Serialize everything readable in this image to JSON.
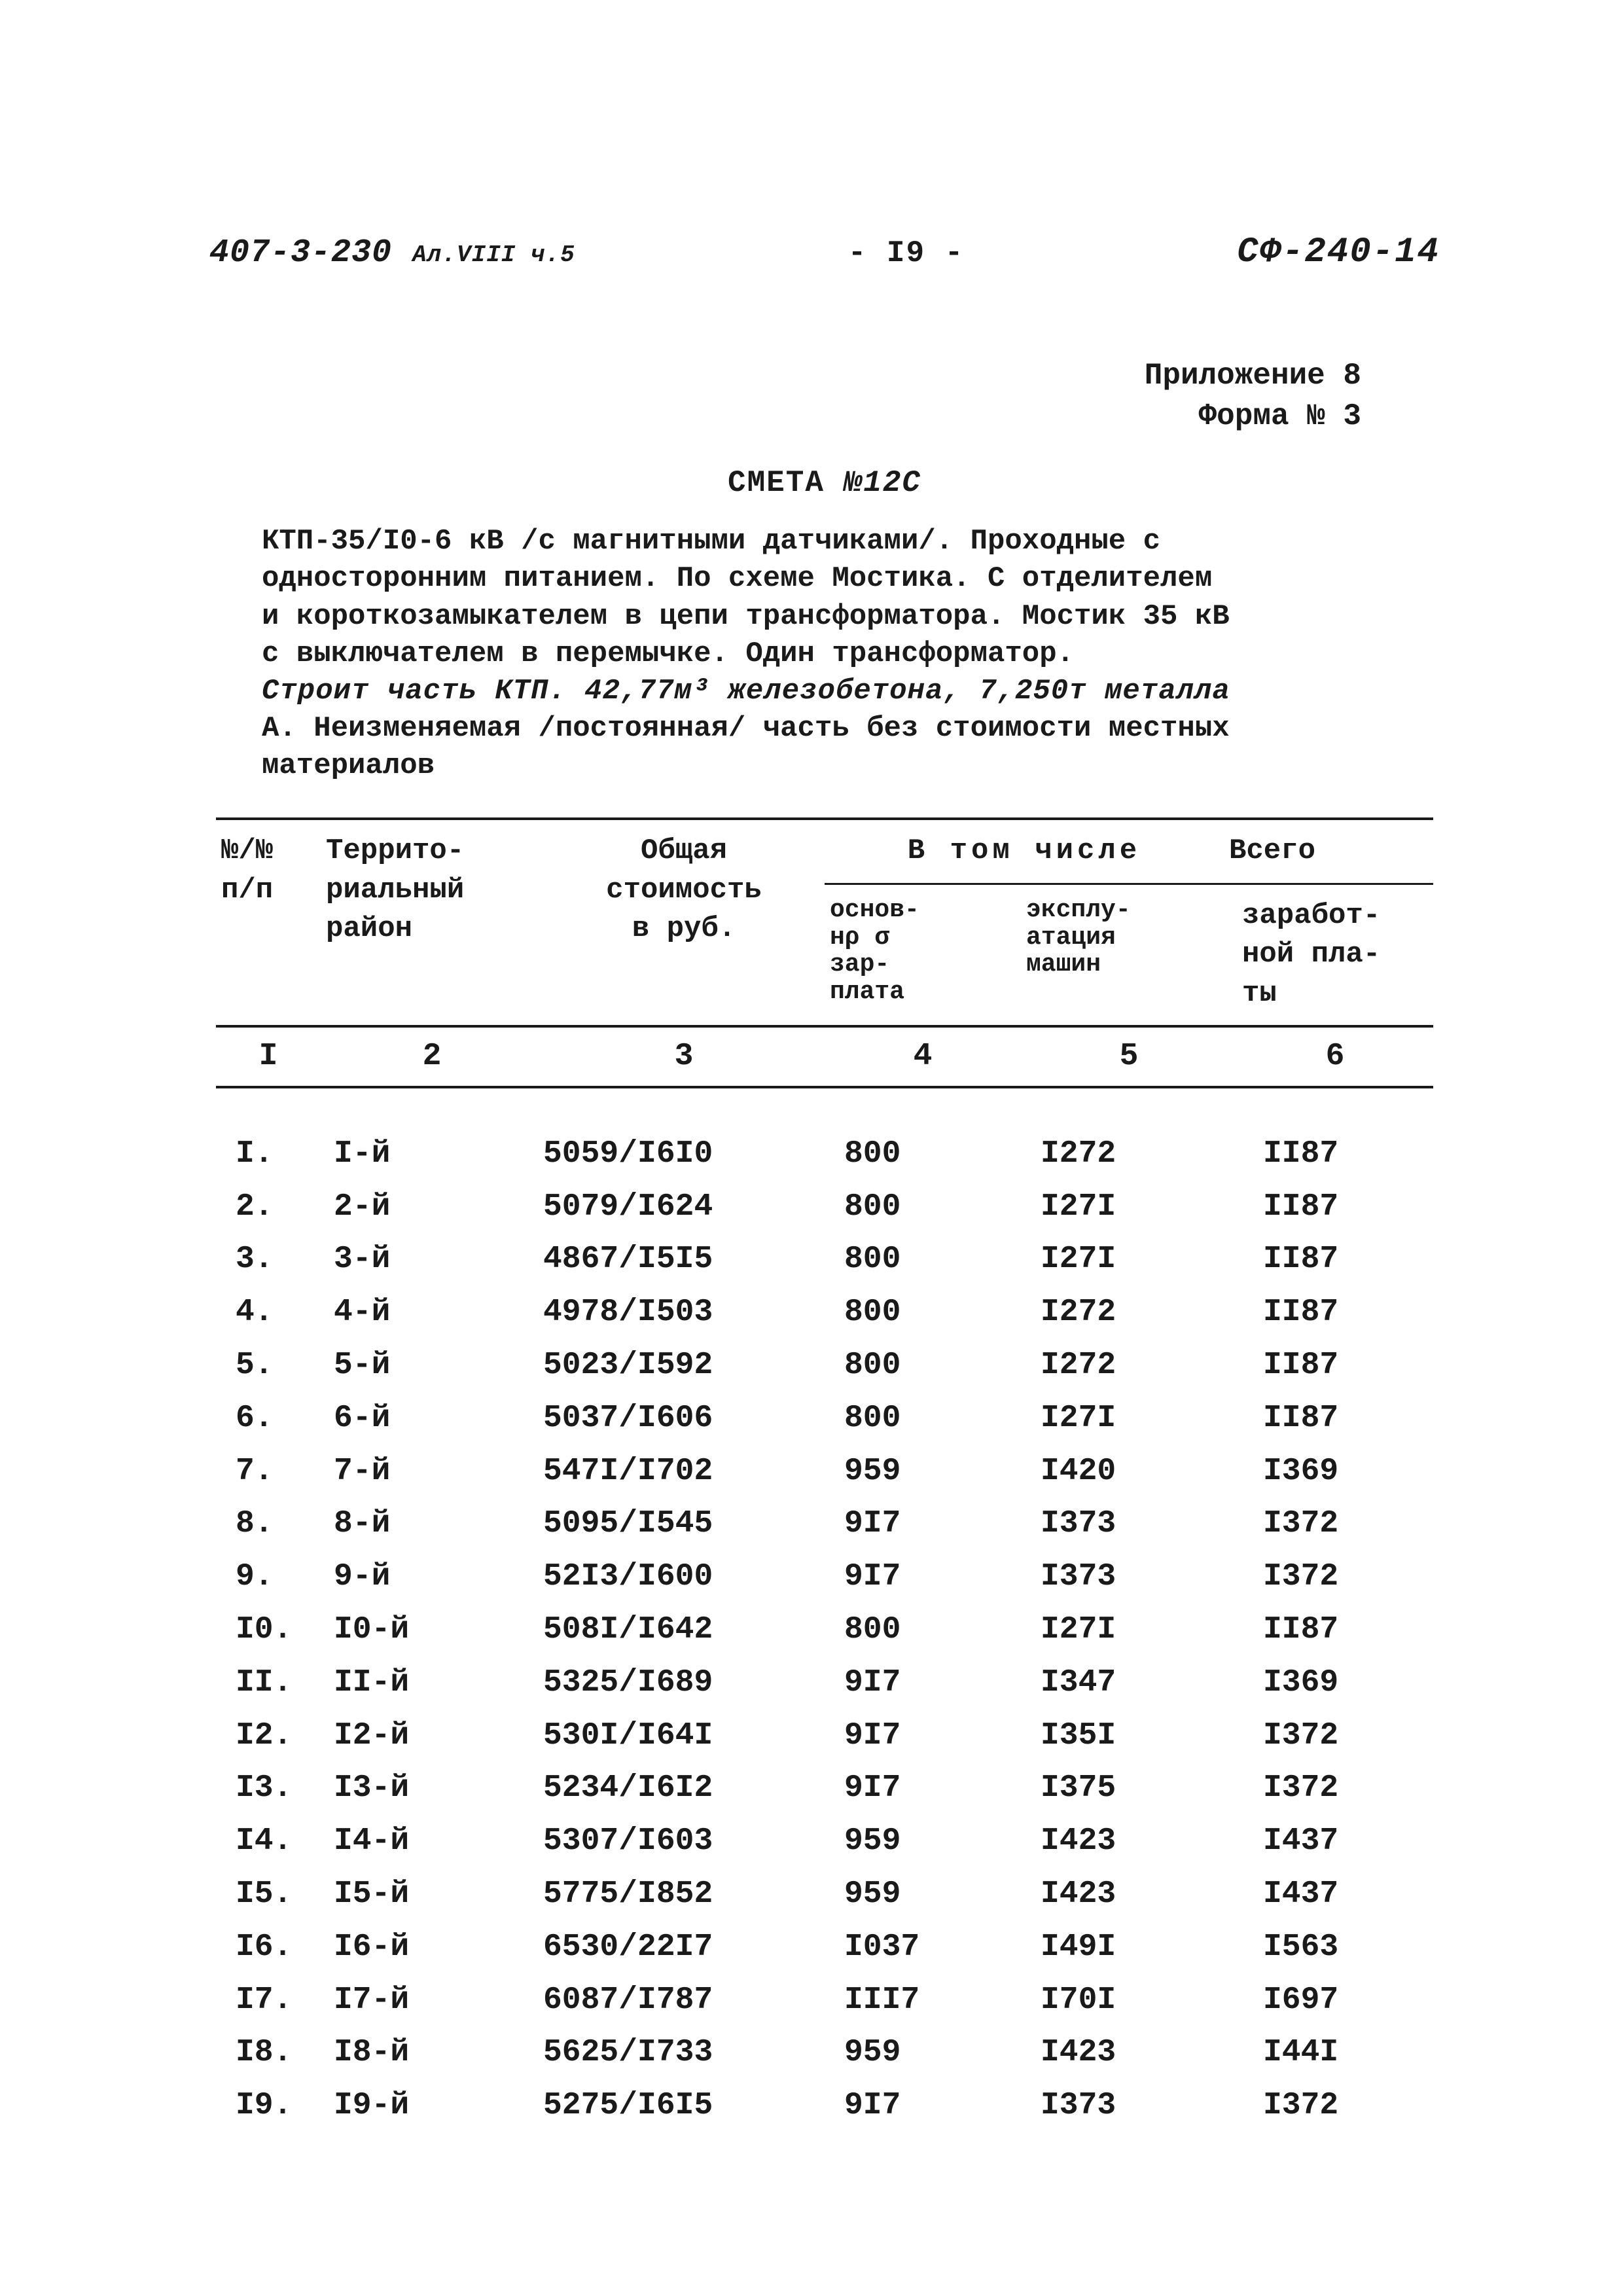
{
  "header": {
    "left_main": "407-3-230",
    "left_sub": "Ал.VIII ч.5",
    "center": "- I9 -",
    "right": "СФ-240-14"
  },
  "appendix": {
    "line1": "Приложение 8",
    "line2": "Форма № 3"
  },
  "title": {
    "prefix": "СМЕТА",
    "number": "№12С"
  },
  "description": {
    "line1": "КТП-35/I0-6 кВ /с магнитными датчиками/. Проходные с",
    "line2": "односторонним питанием. По схеме Мостика. С отделителем",
    "line3": "и короткозамыкателем в цепи трансформатора. Мостик 35 кВ",
    "line4": "с выключателем в перемычке. Один трансформатор.",
    "line5": "Строит часть КТП. 42,77м³ железобетона, 7,250т металла",
    "line6": "А. Неизменяемая /постоянная/ часть без стоимости местных",
    "line7": "   материалов"
  },
  "table": {
    "headers": {
      "col1_l1": "№/№",
      "col1_l2": "п/п",
      "col2_l1": "Террито-",
      "col2_l2": "риальный",
      "col2_l3": "район",
      "col3_l1": "Общая",
      "col3_l2": "стоимость",
      "col3_l3": "в руб.",
      "group_top": "В том числе",
      "col4_l1": "основ-",
      "col4_l2": "нρ σ",
      "col4_l3": "зар-",
      "col4_l4": "плата",
      "col5_l1": "эксплу-",
      "col5_l2": "атация",
      "col5_l3": "машин",
      "col6_l1": "Всего",
      "col6_l2": "заработ-",
      "col6_l3": "ной пла-",
      "col6_l4": "ты"
    },
    "colnums": {
      "c1": "I",
      "c2": "2",
      "c3": "3",
      "c4": "4",
      "c5": "5",
      "c6": "6"
    },
    "rows": [
      {
        "n": "I.",
        "region": "I-й",
        "total": "5059/I6I0",
        "c4": "800",
        "c5": "I272",
        "c6": "II87"
      },
      {
        "n": "2.",
        "region": "2-й",
        "total": "5079/I624",
        "c4": "800",
        "c5": "I27I",
        "c6": "II87"
      },
      {
        "n": "3.",
        "region": "3-й",
        "total": "4867/I5I5",
        "c4": "800",
        "c5": "I27I",
        "c6": "II87"
      },
      {
        "n": "4.",
        "region": "4-й",
        "total": "4978/I503",
        "c4": "800",
        "c5": "I272",
        "c6": "II87"
      },
      {
        "n": "5.",
        "region": "5-й",
        "total": "5023/I592",
        "c4": "800",
        "c5": "I272",
        "c6": "II87"
      },
      {
        "n": "6.",
        "region": "6-й",
        "total": "5037/I606",
        "c4": "800",
        "c5": "I27I",
        "c6": "II87"
      },
      {
        "n": "7.",
        "region": "7-й",
        "total": "547I/I702",
        "c4": "959",
        "c5": "I420",
        "c6": "I369"
      },
      {
        "n": "8.",
        "region": "8-й",
        "total": "5095/I545",
        "c4": "9I7",
        "c5": "I373",
        "c6": "I372"
      },
      {
        "n": "9.",
        "region": "9-й",
        "total": "52I3/I600",
        "c4": "9I7",
        "c5": "I373",
        "c6": "I372"
      },
      {
        "n": "I0.",
        "region": "I0-й",
        "total": "508I/I642",
        "c4": "800",
        "c5": "I27I",
        "c6": "II87"
      },
      {
        "n": "II.",
        "region": "II-й",
        "total": "5325/I689",
        "c4": "9I7",
        "c5": "I347",
        "c6": "I369"
      },
      {
        "n": "I2.",
        "region": "I2-й",
        "total": "530I/I64I",
        "c4": "9I7",
        "c5": "I35I",
        "c6": "I372"
      },
      {
        "n": "I3.",
        "region": "I3-й",
        "total": "5234/I6I2",
        "c4": "9I7",
        "c5": "I375",
        "c6": "I372"
      },
      {
        "n": "I4.",
        "region": "I4-й",
        "total": "5307/I603",
        "c4": "959",
        "c5": "I423",
        "c6": "I437"
      },
      {
        "n": "I5.",
        "region": "I5-й",
        "total": "5775/I852",
        "c4": "959",
        "c5": "I423",
        "c6": "I437"
      },
      {
        "n": "I6.",
        "region": "I6-й",
        "total": "6530/22I7",
        "c4": "I037",
        "c5": "I49I",
        "c6": "I563"
      },
      {
        "n": "I7.",
        "region": "I7-й",
        "total": "6087/I787",
        "c4": "III7",
        "c5": "I70I",
        "c6": "I697"
      },
      {
        "n": "I8.",
        "region": "I8-й",
        "total": "5625/I733",
        "c4": "959",
        "c5": "I423",
        "c6": "I44I"
      },
      {
        "n": "I9.",
        "region": "I9-й",
        "total": "5275/I6I5",
        "c4": "9I7",
        "c5": "I373",
        "c6": "I372"
      }
    ]
  }
}
